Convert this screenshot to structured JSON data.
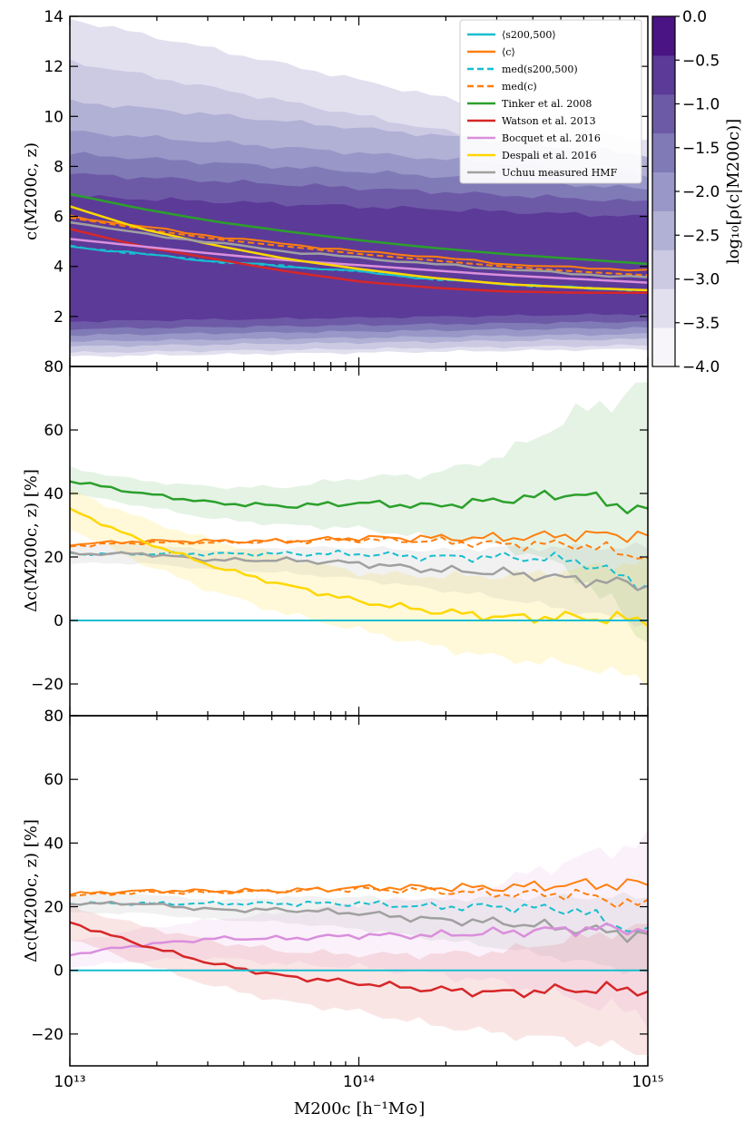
{
  "figure": {
    "xlabel": "M200c [h⁻¹M⊙]",
    "xlim_log10": [
      13,
      15
    ],
    "xtick_labels": [
      "10¹³",
      "10¹⁴",
      "10¹⁵"
    ],
    "colorbar": {
      "label": "log₁₀[ρ(c|M200c)]",
      "tick_labels": [
        "0.0",
        "−0.5",
        "−1.0",
        "−1.5",
        "−2.0",
        "−2.5",
        "−3.0",
        "−3.5",
        "−4.0"
      ],
      "range": [
        -4.0,
        0.0
      ],
      "colors": [
        "#f7f5fa",
        "#e2e0ef",
        "#cccae3",
        "#b1b0d5",
        "#9997c7",
        "#807bb7",
        "#6d5aa7",
        "#5c3a98",
        "#4b1485"
      ]
    },
    "legend_entries": [
      {
        "label": "⟨s200,500⟩",
        "color": "#17becf",
        "style": "solid"
      },
      {
        "label": "⟨c⟩",
        "color": "#ff7f0e",
        "style": "solid"
      },
      {
        "label": "med(s200,500)",
        "color": "#17becf",
        "style": "dashed"
      },
      {
        "label": "med(c)",
        "color": "#ff7f0e",
        "style": "dashed"
      },
      {
        "label": "Tinker et al. 2008",
        "color": "#2ca02c",
        "style": "solid"
      },
      {
        "label": "Watson et al. 2013",
        "color": "#d62728",
        "style": "solid"
      },
      {
        "label": "Bocquet et al. 2016",
        "color": "#da8fdc",
        "style": "solid"
      },
      {
        "label": "Despali et al. 2016",
        "color": "#ffd700",
        "style": "solid"
      },
      {
        "label": "Uchuu measured HMF",
        "color": "#a0a0a0",
        "style": "solid"
      }
    ]
  },
  "panels": [
    {
      "ylabel": "c(M200c, z)",
      "ylim": [
        0,
        14
      ],
      "ytick_labels": [
        "2",
        "4",
        "6",
        "8",
        "10",
        "12",
        "14"
      ]
    },
    {
      "ylabel": "Δc(M200c, z) [%]",
      "ylim": [
        -30,
        80
      ],
      "ytick_labels": [
        "−20",
        "0",
        "20",
        "40",
        "60",
        "80"
      ]
    },
    {
      "ylabel": "Δc(M200c, z) [%]",
      "ylim": [
        -30,
        80
      ],
      "ytick_labels": [
        "−20",
        "0",
        "20",
        "40",
        "60",
        "80"
      ]
    }
  ],
  "chart_data": [
    {
      "type": "line",
      "x_log10": [
        13.0,
        13.25,
        13.5,
        13.75,
        14.0,
        14.25,
        14.5,
        14.75,
        15.0
      ],
      "ylim": [
        0,
        14
      ],
      "series": [
        {
          "name": "⟨s200,500⟩",
          "y": [
            4.8,
            4.5,
            4.2,
            4.0,
            3.8,
            3.5,
            3.3,
            3.15,
            3.05
          ]
        },
        {
          "name": "⟨c⟩",
          "y": [
            6.0,
            5.6,
            5.2,
            4.9,
            4.6,
            4.4,
            4.1,
            3.95,
            3.85
          ]
        },
        {
          "name": "med(s200,500)",
          "y": [
            4.8,
            4.5,
            4.2,
            4.0,
            3.8,
            3.5,
            3.3,
            3.15,
            3.05
          ]
        },
        {
          "name": "med(c)",
          "y": [
            5.95,
            5.5,
            5.1,
            4.8,
            4.5,
            4.25,
            4.0,
            3.8,
            3.65
          ]
        },
        {
          "name": "Tinker et al. 2008",
          "y": [
            6.9,
            6.3,
            5.8,
            5.4,
            5.05,
            4.75,
            4.5,
            4.3,
            4.1
          ]
        },
        {
          "name": "Watson et al. 2013",
          "y": [
            5.5,
            4.8,
            4.3,
            3.8,
            3.4,
            3.15,
            3.0,
            2.95,
            2.95
          ]
        },
        {
          "name": "Bocquet et al. 2016",
          "y": [
            5.1,
            4.8,
            4.5,
            4.25,
            4.05,
            3.85,
            3.65,
            3.5,
            3.35
          ]
        },
        {
          "name": "Despali et al. 2016",
          "y": [
            6.4,
            5.5,
            4.85,
            4.3,
            3.9,
            3.55,
            3.3,
            3.15,
            3.05
          ]
        },
        {
          "name": "Uchuu measured HMF",
          "y": [
            5.8,
            5.3,
            4.95,
            4.6,
            4.35,
            4.1,
            3.9,
            3.7,
            3.55
          ]
        }
      ]
    },
    {
      "type": "line",
      "x_log10": [
        13.0,
        13.25,
        13.5,
        13.75,
        14.0,
        14.25,
        14.5,
        14.75,
        15.0
      ],
      "ylim": [
        -30,
        80
      ],
      "series": [
        {
          "name": "Tinker et al. 2008",
          "y": [
            44,
            40,
            37,
            36,
            37,
            36,
            38,
            40,
            34
          ]
        },
        {
          "name": "⟨c⟩",
          "y": [
            24,
            25,
            25,
            25,
            26,
            26,
            26,
            27,
            27
          ]
        },
        {
          "name": "med(c)",
          "y": [
            23.5,
            24.5,
            24.5,
            25,
            25.5,
            25,
            24,
            24,
            20
          ]
        },
        {
          "name": "med(s200,500)",
          "y": [
            21,
            21,
            21,
            21,
            21,
            20,
            20,
            19,
            11
          ]
        },
        {
          "name": "Uchuu measured HMF",
          "y": [
            21,
            21,
            19,
            19,
            18,
            16,
            15,
            13,
            11
          ]
        },
        {
          "name": "Despali et al. 2016",
          "y": [
            35,
            25,
            17,
            11,
            6,
            3,
            1,
            1,
            0
          ]
        },
        {
          "name": "⟨s200,500⟩",
          "y": [
            0,
            0,
            0,
            0,
            0,
            0,
            0,
            0,
            0
          ]
        }
      ]
    },
    {
      "type": "line",
      "x_log10": [
        13.0,
        13.25,
        13.5,
        13.75,
        14.0,
        14.25,
        14.5,
        14.75,
        15.0
      ],
      "ylim": [
        -30,
        80
      ],
      "series": [
        {
          "name": "⟨c⟩",
          "y": [
            24,
            25,
            25,
            25,
            26,
            26,
            26,
            27,
            27
          ]
        },
        {
          "name": "med(c)",
          "y": [
            23.5,
            24.5,
            24.5,
            25,
            25.5,
            25,
            24,
            24,
            20
          ]
        },
        {
          "name": "med(s200,500)",
          "y": [
            21,
            21,
            21,
            21,
            21,
            20,
            20,
            19,
            11
          ]
        },
        {
          "name": "Uchuu measured HMF",
          "y": [
            21,
            21,
            19,
            19,
            18,
            16,
            15,
            13,
            11
          ]
        },
        {
          "name": "Bocquet et al. 2016",
          "y": [
            5,
            8,
            10,
            10,
            11,
            11,
            12,
            13,
            13
          ]
        },
        {
          "name": "Watson et al. 2013",
          "y": [
            15,
            8,
            2,
            -2,
            -4,
            -6,
            -7,
            -6,
            -6
          ]
        },
        {
          "name": "⟨s200,500⟩",
          "y": [
            0,
            0,
            0,
            0,
            0,
            0,
            0,
            0,
            0
          ]
        }
      ]
    }
  ]
}
